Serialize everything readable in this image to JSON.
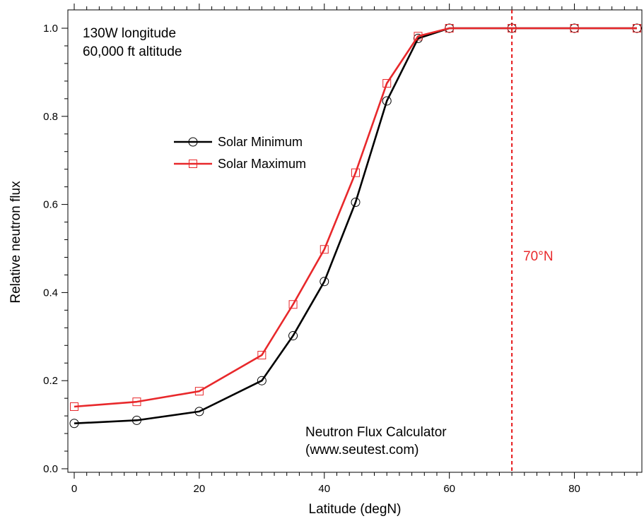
{
  "chart_data": {
    "type": "line",
    "xlabel": "Latitude (degN)",
    "ylabel": "Relative neutron flux",
    "xlim": [
      -1,
      90
    ],
    "ylim": [
      -0.01,
      1.04
    ],
    "xticks": [
      0,
      20,
      40,
      60,
      80
    ],
    "xtick_labels": [
      "0",
      "20",
      "40",
      "60",
      "80"
    ],
    "yticks": [
      0.0,
      0.2,
      0.4,
      0.6,
      0.8,
      1.0
    ],
    "ytick_labels": [
      "0.0",
      "0.2",
      "0.4",
      "0.6",
      "0.8",
      "1.0"
    ],
    "grid": false,
    "legend_position": "upper-left",
    "annotations": {
      "top_left_line1": "130W longitude",
      "top_left_line2": "60,000 ft altitude",
      "bottom_line1": "Neutron Flux Calculator",
      "bottom_line2": "(www.seutest.com)"
    },
    "reference_line": {
      "x": 70,
      "label": "70°N",
      "color": "#e8282b",
      "style": "dashed"
    },
    "series": [
      {
        "name": "Solar Minimum",
        "color": "#000000",
        "marker": "circle",
        "x": [
          0,
          10,
          20,
          30,
          35,
          40,
          45,
          50,
          55,
          60,
          70,
          80,
          90
        ],
        "y": [
          0.103,
          0.11,
          0.13,
          0.2,
          0.302,
          0.425,
          0.605,
          0.835,
          0.977,
          1.0,
          1.0,
          1.0,
          1.0
        ]
      },
      {
        "name": "Solar Maximum",
        "color": "#e8282b",
        "marker": "square",
        "x": [
          0,
          10,
          20,
          30,
          35,
          40,
          45,
          50,
          55,
          60,
          70,
          80,
          90
        ],
        "y": [
          0.141,
          0.152,
          0.176,
          0.258,
          0.373,
          0.498,
          0.672,
          0.875,
          0.982,
          1.0,
          1.0,
          1.0,
          1.0
        ]
      }
    ]
  }
}
